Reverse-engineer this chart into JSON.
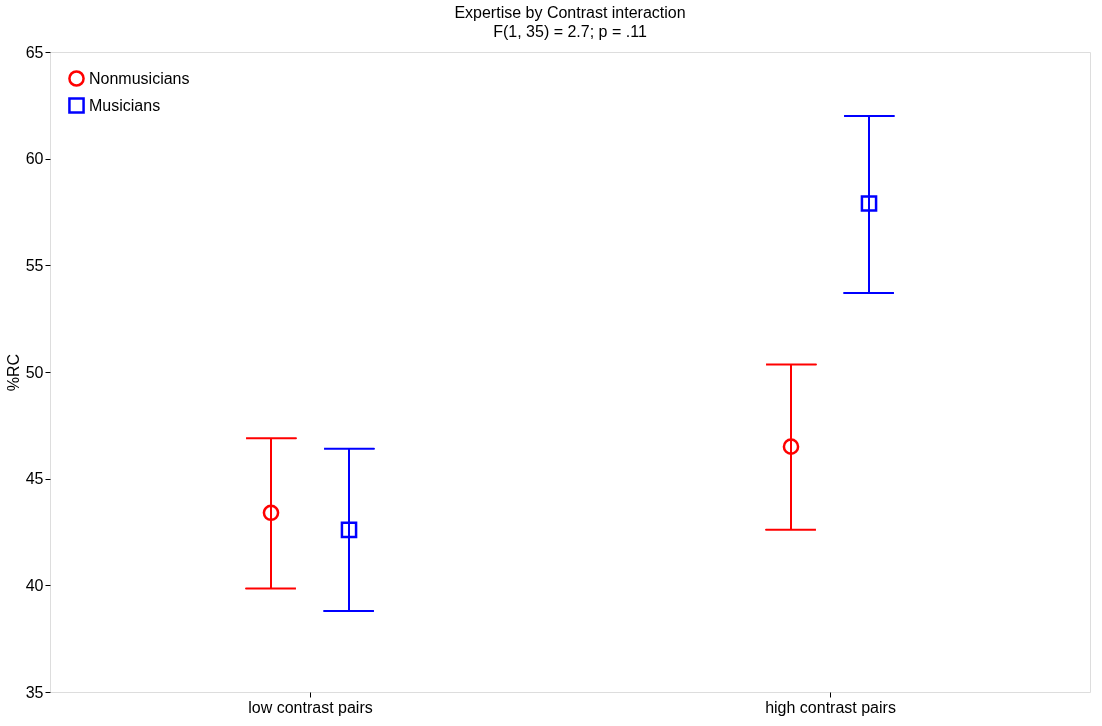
{
  "chart_data": {
    "type": "scatter",
    "title": "Expertise by Contrast interaction",
    "subtitle": "F(1, 35) = 2.7; p = .11",
    "ylabel": "%RC",
    "categories": [
      "low contrast pairs",
      "high contrast pairs"
    ],
    "series": [
      {
        "name": "Nonmusicians",
        "color": "#ff0000",
        "marker": "circle",
        "values": [
          43.4,
          46.5
        ],
        "errors": [
          [
            39.85,
            46.9
          ],
          [
            42.6,
            50.35
          ]
        ]
      },
      {
        "name": "Musicians",
        "color": "#0000ff",
        "marker": "square",
        "values": [
          42.6,
          57.9
        ],
        "errors": [
          [
            38.8,
            46.4
          ],
          [
            53.7,
            62.0
          ]
        ]
      }
    ],
    "ylim": [
      35,
      65
    ],
    "yticks": [
      35,
      40,
      45,
      50,
      55,
      60,
      65
    ],
    "grid": false,
    "legend": "top left"
  }
}
